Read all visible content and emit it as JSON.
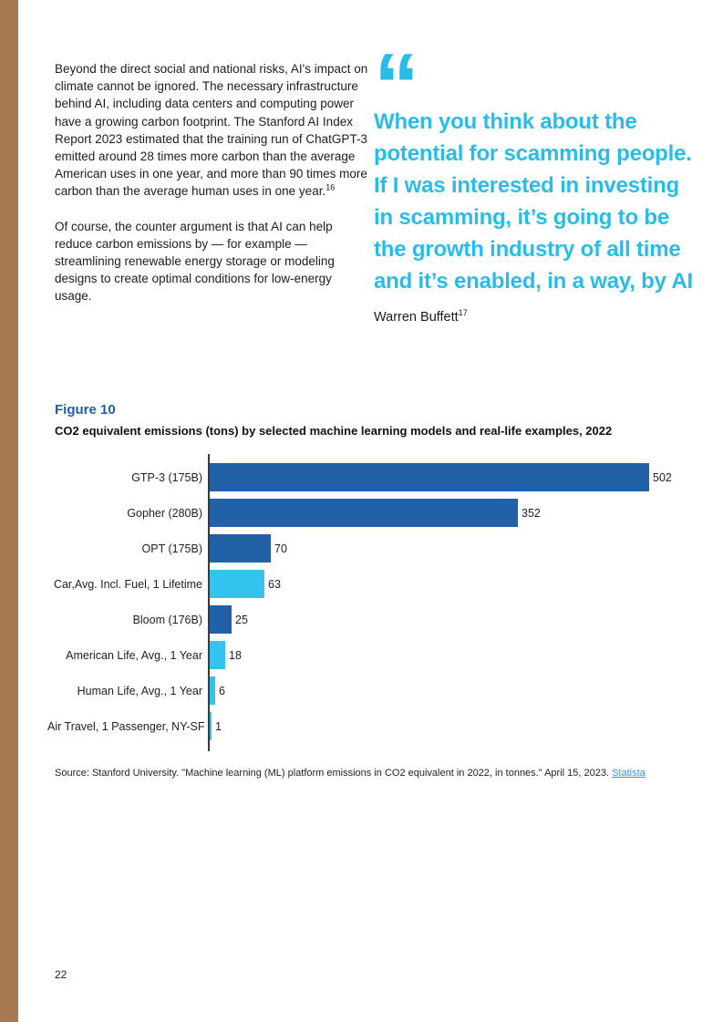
{
  "page": {
    "number": "22"
  },
  "colors": {
    "accent_cyan": "#29bcea",
    "dark_blue": "#2261a8",
    "light_cyan": "#33c3ee",
    "brown_sidebar": "#a87a52",
    "figure_label_blue": "#1e5fa9",
    "link_blue": "#2e9be6"
  },
  "article": {
    "paragraph1": "Beyond the direct social and national risks, AI's impact on climate cannot be ignored. The necessary infrastructure behind AI, including data centers and computing power have a growing carbon footprint. The Stanford AI Index Report 2023 estimated that the training run of ChatGPT-3 emitted around 28 times more carbon than the average American uses in one year, and more than 90 times more carbon than the average human uses in one year.",
    "paragraph1_footnote": "16",
    "paragraph2": "Of course, the counter argument is that AI can help reduce carbon emissions by — for example — streamlining renewable energy storage or modeling designs to create optimal conditions for low-energy usage."
  },
  "quote": {
    "mark": "“",
    "text": "When you think about the potential for scamming people. If I was interested in investing in scamming, it’s going to be the growth industry of all time and it’s enabled, in a way, by AI",
    "attribution": "Warren Buffett",
    "footnote": "17"
  },
  "figure": {
    "label": "Figure 10",
    "title": "CO2 equivalent emissions (tons) by selected machine learning models and real-life examples, 2022",
    "source_prefix": "Source: Stanford University. \"Machine learning (ML) platform emissions in CO2 equivalent in 2022, in tonnes.\" April 15, 2023. ",
    "source_link": "Statista"
  },
  "chart_data": {
    "type": "bar",
    "orientation": "horizontal",
    "title": "CO2 equivalent emissions (tons) by selected machine learning models and real-life examples, 2022",
    "categories": [
      "GTP-3 (175B)",
      "Gopher (280B)",
      "OPT (175B)",
      "Car,Avg. Incl. Fuel, 1 Lifetime",
      "Bloom (176B)",
      "American Life, Avg., 1 Year",
      "Human Life, Avg., 1 Year",
      "Air Travel, 1 Passenger, NY-SF"
    ],
    "values": [
      502,
      352,
      70,
      63,
      25,
      18,
      6,
      1
    ],
    "data_labels": [
      "502",
      "352",
      "70",
      "63",
      "25",
      "18",
      "6",
      "1"
    ],
    "bar_colors": [
      "#2261a8",
      "#2261a8",
      "#2261a8",
      "#33c3ee",
      "#2261a8",
      "#33c3ee",
      "#33c3ee",
      "#33c3ee"
    ],
    "xlim": [
      0,
      502
    ],
    "grid": false,
    "legend": false,
    "value_label_position": "end-of-bar"
  }
}
